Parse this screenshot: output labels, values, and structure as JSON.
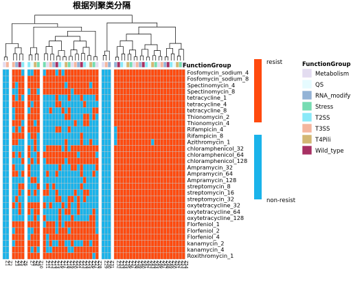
{
  "chart_data": {
    "type": "heatmap",
    "title": "根据列聚类分隔",
    "rows": [
      "Fosfomycin_sodium_4",
      "Fosfomycin_sodium_8",
      "Spectinomycin_4",
      "Spectinomycin_8",
      "tetracycline_1",
      "tetracycline_4",
      "tetracycline_8",
      "Thionomycin_2",
      "Thionomycin_4",
      "Rifampicin_4",
      "Rifampicin_8",
      "Azithromycin_1",
      "chloramphenicol_32",
      "chloramphenicol_64",
      "chloramphenicol_128",
      "Ampramycin_32",
      "Ampramycin_64",
      "Ampramycin_128",
      "streptomycin_8",
      "streptomycin_16",
      "streptomycin_32",
      "oxytetracycline_32",
      "oxytetracycline_64",
      "oxytetracycline_128",
      "Florfeniol_1",
      "Florfeniol_2",
      "Florfeniol_4",
      "kanamycin_2",
      "kanamycin_4",
      "Roxithromycin_1"
    ],
    "groups": [
      {
        "n": 2,
        "pattern": "n"
      },
      {
        "n": 4,
        "pattern": "mix"
      },
      {
        "n": 4,
        "pattern": "mix"
      },
      {
        "n": 18,
        "pattern": "mixr"
      },
      {
        "n": 3,
        "pattern": "n"
      },
      {
        "n": 23,
        "pattern": "r"
      }
    ],
    "value_legend": {
      "high_label": "resist",
      "low_label": "non-resist",
      "high_color": "#ff4a0e",
      "low_color": "#1ab3ea"
    },
    "annotation_title": "FunctionGroup",
    "annotation_levels": [
      {
        "label": "Metabolism",
        "color": "#e3dcf0"
      },
      {
        "label": "QS",
        "color": "#e6fbff"
      },
      {
        "label": "RNA_modify",
        "color": "#93b3d6"
      },
      {
        "label": "Stress",
        "color": "#76dcb2"
      },
      {
        "label": "T2SS",
        "color": "#8ae9f8"
      },
      {
        "label": "T3SS",
        "color": "#f4b69e"
      },
      {
        "label": "T4Pili",
        "color": "#d3b773"
      },
      {
        "label": "Wild_type",
        "color": "#a73063"
      }
    ],
    "column_label_prefix": "Z"
  }
}
